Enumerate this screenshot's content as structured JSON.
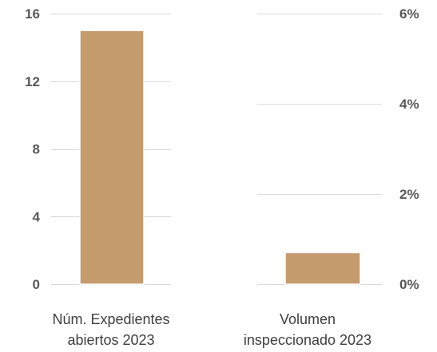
{
  "chart_data": {
    "type": "bar",
    "layout": "dual-axis",
    "title": "",
    "colors": {
      "bar_fill": "#c49c6e",
      "bar_stroke": "#ffffff",
      "grid": "#d9d9d9",
      "tick_text": "#595959",
      "label_text": "#404040"
    },
    "grid": true,
    "left_axis": {
      "ylim": [
        0,
        16
      ],
      "ticks": [
        {
          "value": 0,
          "label": "0"
        },
        {
          "value": 4,
          "label": "4"
        },
        {
          "value": 8,
          "label": "8"
        },
        {
          "value": 12,
          "label": "12"
        },
        {
          "value": 16,
          "label": "16"
        }
      ]
    },
    "right_axis": {
      "ylim": [
        0,
        6
      ],
      "ticks": [
        {
          "value": 0,
          "label": "0%"
        },
        {
          "value": 2,
          "label": "2%"
        },
        {
          "value": 4,
          "label": "4%"
        },
        {
          "value": 6,
          "label": "6%"
        }
      ]
    },
    "panels": [
      {
        "axis": "left",
        "category_lines": [
          "Núm. Expedientes",
          "abiertos 2023"
        ],
        "value": 15
      },
      {
        "axis": "right",
        "category_lines": [
          "Volumen",
          "inspeccionado 2023"
        ],
        "value": 0.7
      }
    ]
  }
}
